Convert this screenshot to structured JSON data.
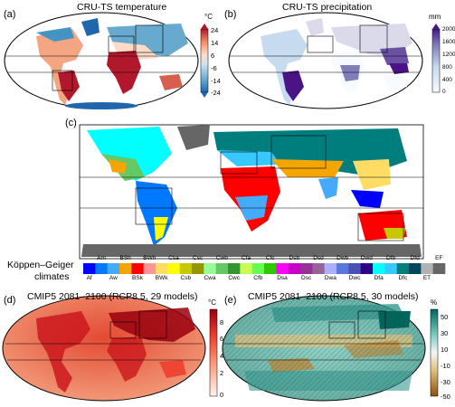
{
  "panels": {
    "a": {
      "letter": "(a)",
      "title": "CRU-TS temperature",
      "unit": "°C",
      "ticks": [
        "24",
        "14",
        "6",
        "-6",
        "-14",
        "-24"
      ],
      "colors": [
        "#b2182b",
        "#ef8a62",
        "#fddbc7",
        "#d1e5f0",
        "#67a9cf",
        "#2166ac"
      ]
    },
    "b": {
      "letter": "(b)",
      "title": "CRU-TS precipitation",
      "unit": "mm",
      "ticks": [
        "2000",
        "1600",
        "1200",
        "800",
        "400",
        "0"
      ],
      "colors": [
        "#4a1486",
        "#6a51a3",
        "#807dba",
        "#9e9ac8",
        "#c6dbef",
        "#f7fbff"
      ]
    },
    "c": {
      "letter": "(c)",
      "legend_title_1": "Köppen–Geiger",
      "legend_title_2": "climates",
      "classes_top": [
        "Am",
        "BSh",
        "BWh",
        "Csa",
        "Csc",
        "Cwb",
        "Cfa",
        "Cfc",
        "Dsb",
        "Dsd",
        "Dwb",
        "Dwd",
        "Dfb",
        "Dfd",
        "EF"
      ],
      "classes_bottom": [
        "Af",
        "Aw",
        "BSk",
        "BWk",
        "Csb",
        "Cwa",
        "Cwc",
        "Cfb",
        "Dsa",
        "Dsc",
        "Dwa",
        "Dwc",
        "Dfa",
        "Dfc",
        "ET"
      ],
      "class_colors": [
        "#0000ff",
        "#0078ff",
        "#46aafa",
        "#f5a500",
        "#ff0000",
        "#ff9696",
        "#ffdc64",
        "#ffff00",
        "#c8c800",
        "#969600",
        "#96ff96",
        "#64c864",
        "#329632",
        "#c8ff50",
        "#64ff50",
        "#32c800",
        "#ff00ff",
        "#c800c8",
        "#963296",
        "#966496",
        "#aaafff",
        "#5a78dc",
        "#4b50b4",
        "#320087",
        "#00ffff",
        "#37c8ff",
        "#007d7d",
        "#00465f",
        "#b2b2b2",
        "#666666"
      ]
    },
    "d": {
      "letter": "(d)",
      "title": "CMIP5 2081–2100 (RCP8.5, 29 models)",
      "unit": "°C",
      "ticks": [
        "8",
        "6",
        "4",
        "2",
        "0"
      ],
      "colors": [
        "#99000d",
        "#cb181d",
        "#ef3b2c",
        "#fb6a4a",
        "#fc9272",
        "#fcbba1",
        "#fee0d2",
        "#fff5f0"
      ]
    },
    "e": {
      "letter": "(e)",
      "title": "CMIP5 2081–2100 (RCP8.5, 30 models)",
      "unit": "%",
      "ticks": [
        "50",
        "30",
        "10",
        "-10",
        "-30",
        "-50"
      ],
      "colors": [
        "#01665e",
        "#35978f",
        "#80cdc1",
        "#c7eae5",
        "#f6e8c3",
        "#dfc27d",
        "#bf812d",
        "#8c510a"
      ]
    }
  }
}
